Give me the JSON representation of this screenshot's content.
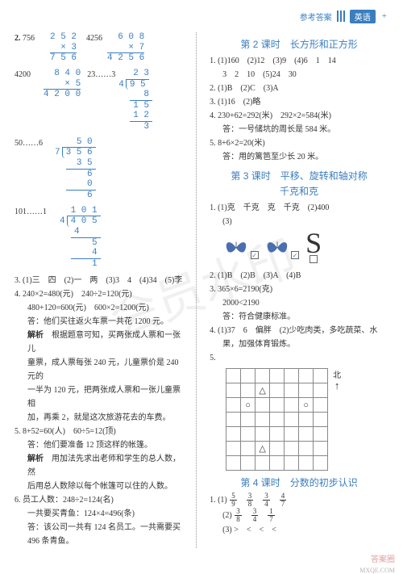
{
  "header": {
    "ref": "参考答案",
    "subj": "英语"
  },
  "watermark": "会员水印",
  "left": {
    "q2": {
      "label": "2.",
      "a1": "756",
      "mult1": {
        "top": "2 5 2",
        "mid": "×     3",
        "res": "7 5 6"
      },
      "a2": "4256",
      "mult2": {
        "top": "6 0 8",
        "mid": "×     7",
        "res": "4 2 5 6"
      },
      "a3": "4200",
      "mult3": {
        "top": "8 4 0",
        "mid": "×     5",
        "res": "4 2 0 0"
      },
      "a4": "23……3",
      "div1": {
        "quo": "2 3",
        "dvs": "4",
        "dvd": "9 5",
        "s1": "8",
        "s2": "1 5",
        "s3": "1 2",
        "s4": "3"
      },
      "a5": "50……6",
      "div2": {
        "quo": "5 0",
        "dvs": "7",
        "dvd": "3 5 6",
        "s1": "3 5",
        "s2": "6",
        "s3": "0",
        "s4": "6"
      },
      "a6": "101……1",
      "div3": {
        "quo": "1 0 1",
        "dvs": "4",
        "dvd": "4 0 5",
        "s1": "4",
        "s2": "5",
        "s3": "4",
        "s4": "1"
      }
    },
    "q3": "3. (1)三　四　(2)一　两　(3)3　4　(4)34　(5)李",
    "q4": {
      "l1": "4. 240×2=480(元)　240÷2=120(元)",
      "l2": "480+120=600(元)　600×2=1200(元)",
      "l3": "答：他们买往返火车票一共花 1200 元。",
      "l4": "解析　根据题意可知，买两张成人票和一张儿",
      "l5": "童票，成人票每张 240 元，儿童票价是 240 元的",
      "l6": "一半为 120 元，把两张成人票和一张儿童票相",
      "l7": "加，再乘 2，就是这次旅游花去的车费。"
    },
    "q5": {
      "l1": "5. 8+52=60(人)　60÷5=12(顶)",
      "l2": "答：他们要准备 12 顶这样的帐篷。",
      "l3": "解析　用加法先求出老师和学生的总人数，然",
      "l4": "后用总人数除以每个帐篷可以住的人数。"
    },
    "q6": {
      "l1": "6. 员工人数：248÷2=124(名)",
      "l2": "一共要买青鱼：124×4=496(条)",
      "l3": "答：该公司一共有 124 名员工。一共需要买",
      "l4": "496 条青鱼。"
    }
  },
  "right": {
    "sec2": {
      "title": "第 2 课时　长方形和正方形",
      "q1": "1. (1)160　(2)12　(3)9　(4)6　1　14",
      "q1b": "3　2　10　(5)24　30",
      "q2": "2. (1)B　(2)C　(3)A",
      "q3": "3. (1)16　(2)略",
      "q4a": "4. 230+62=292(米)　292×2=584(米)",
      "q4b": "答：一号储坑的周长是 584 米。",
      "q5a": "5. 8+6×2=20(米)",
      "q5b": "答：用的篱笆至少长 20 米。"
    },
    "sec3": {
      "title1": "第 3 课时　平移、旋转和轴对称",
      "title2": "千克和克",
      "q1a": "1. (1)克　千克　克　千克　(2)400",
      "q1b": "(3)",
      "q2": "2. (1)B　(2)B　(3)A　(4)B",
      "q3a": "3. 365×6=2190(克)",
      "q3b": "2000<2190",
      "q3c": "答：符合健康标准。",
      "q4a": "4. (1)37　6　偏胖　(2)少吃肉类，多吃蔬菜、水",
      "q4b": "果，加强体育锻炼。",
      "q5": "5.",
      "compass": "北"
    },
    "sec4": {
      "title": "第 4 课时　分数的初步认识",
      "q1_label": "1. (1)",
      "fracs1": [
        [
          "5",
          "9"
        ],
        [
          "3",
          "8"
        ],
        [
          "3",
          "4"
        ],
        [
          "4",
          "7"
        ]
      ],
      "q2_label": "(2)",
      "fracs2": [
        [
          "3",
          "8"
        ],
        [
          "3",
          "4"
        ],
        [
          "1",
          "7"
        ]
      ],
      "q3": "(3) >　<　<　<"
    }
  },
  "footer": {
    "logo": "答案圈",
    "url": "MXQE.COM"
  },
  "colors": {
    "blue": "#3a7ebf",
    "text": "#333333",
    "grid": "#888888",
    "wm": "rgba(0,0,0,0.06)"
  }
}
